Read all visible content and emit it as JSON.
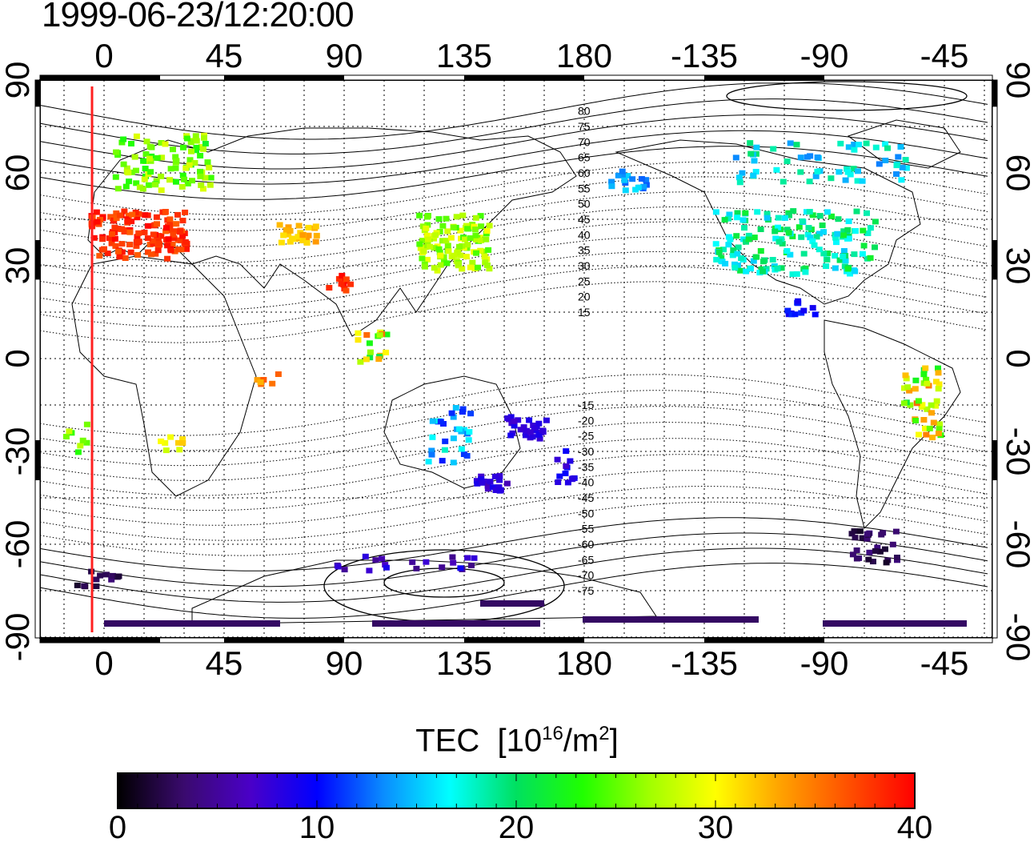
{
  "title": "1999-06-23/12:20:00",
  "map": {
    "x_tick_labels": [
      "0",
      "45",
      "90",
      "135",
      "180",
      "-135",
      "-90",
      "-45"
    ],
    "y_tick_labels": [
      "90",
      "60",
      "30",
      "0",
      "-30",
      "-60",
      "-90"
    ],
    "magnetic_latitude_labels": [
      "80",
      "75",
      "70",
      "65",
      "60",
      "55",
      "50",
      "45",
      "40",
      "35",
      "30",
      "25",
      "20",
      "15",
      "-15",
      "-20",
      "-25",
      "-30",
      "-35",
      "-40",
      "-45",
      "-50",
      "-55",
      "-60",
      "-65",
      "-70",
      "-75"
    ],
    "terminator_color": "#ff2020"
  },
  "colorbar": {
    "label": "TEC",
    "unit_base": "[10",
    "unit_exp": "16",
    "unit_mid": "/m",
    "unit_exp2": "2",
    "unit_end": "]",
    "ticks": [
      "0",
      "10",
      "20",
      "30",
      "40"
    ],
    "min": 0,
    "max": 40,
    "colors": [
      "#000000",
      "#3a0a6e",
      "#4a00c8",
      "#0000ff",
      "#0a8cff",
      "#00ffff",
      "#00e060",
      "#20ff00",
      "#a0ff00",
      "#ffff00",
      "#ffa000",
      "#ff5000",
      "#ff0000"
    ]
  }
}
